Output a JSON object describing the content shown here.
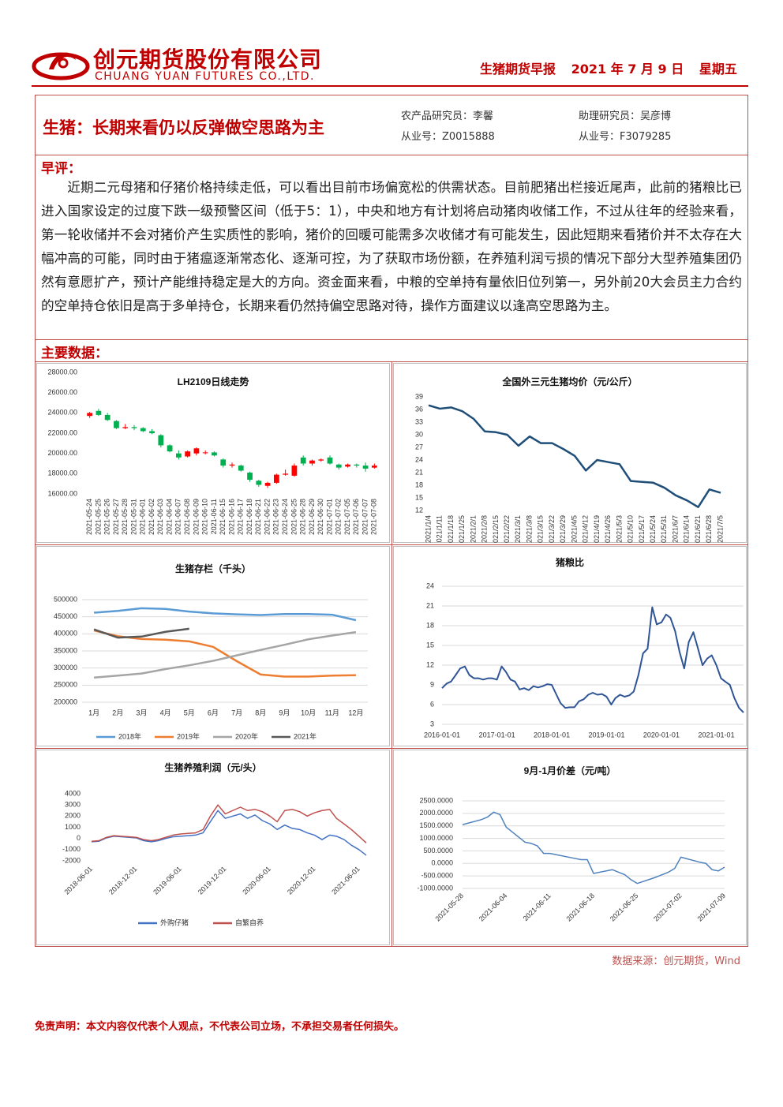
{
  "header": {
    "company_cn": "创元期货股份有限公司",
    "company_en": "CHUANG YUAN FUTURES CO.,LTD.",
    "report": "生猪期货早报",
    "date": "2021 年 7 月 9 日",
    "weekday": "星期五"
  },
  "title": "生猪：长期来看仍以反弹做空思路为主",
  "researchers": [
    "农产品研究员：李馨",
    "从业号：Z0015888",
    "助理研究员：吴彦博",
    "从业号：F3079285"
  ],
  "comment": {
    "heading": "早评：",
    "text": "近期二元母猪和仔猪价格持续走低，可以看出目前市场偏宽松的供需状态。目前肥猪出栏接近尾声，此前的猪粮比已进入国家设定的过度下跌一级预警区间（低于5：1），中央和地方有计划将启动猪肉收储工作，不过从往年的经验来看，第一轮收储并不会对猪价产生实质性的影响，猪价的回暖可能需多次收储才有可能发生，因此短期来看猪价并不太存在大幅冲高的可能，同时由于猪瘟逐渐常态化、逐渐可控，为了获取市场份额，在养殖利润亏损的情况下部分大型养殖集团仍然有意愿扩产，预计产能维持稳定是大的方向。资金面来看，中粮的空单持有量依旧位列第一，另外前20大会员主力合约的空单持仓依旧是高于多单持仓，长期来看仍然持偏空思路对待，操作方面建议以逢高空思路为主。"
  },
  "data_heading": "主要数据：",
  "chart_data": [
    {
      "type": "candlestick",
      "title": "LH2109日线走势",
      "categories": [
        "2021-05-24",
        "2021-05-25",
        "2021-05-26",
        "2021-05-27",
        "2021-05-28",
        "2021-05-31",
        "2021-06-01",
        "2021-06-02",
        "2021-06-03",
        "2021-06-04",
        "2021-06-07",
        "2021-06-08",
        "2021-06-09",
        "2021-06-10",
        "2021-06-11",
        "2021-06-15",
        "2021-06-16",
        "2021-06-17",
        "2021-06-18",
        "2021-06-21",
        "2021-06-22",
        "2021-06-23",
        "2021-06-24",
        "2021-06-25",
        "2021-06-28",
        "2021-06-29",
        "2021-06-30",
        "2021-07-01",
        "2021-07-02",
        "2021-07-05",
        "2021-07-06",
        "2021-07-07",
        "2021-07-08"
      ],
      "open": [
        23700,
        24200,
        23800,
        23200,
        22500,
        22600,
        22500,
        22200,
        21800,
        20800,
        20000,
        19700,
        20000,
        20100,
        20100,
        19400,
        18800,
        18800,
        18100,
        17300,
        16800,
        17100,
        17900,
        17800,
        19600,
        19000,
        19300,
        19600,
        18900,
        18700,
        18900,
        18800,
        18600
      ],
      "high": [
        24100,
        24400,
        24000,
        23300,
        22900,
        22800,
        22600,
        22400,
        21900,
        20900,
        20300,
        20300,
        20600,
        20300,
        20200,
        19500,
        19100,
        18900,
        18200,
        17400,
        17200,
        18000,
        18400,
        19000,
        19800,
        19400,
        19500,
        19800,
        19000,
        19000,
        19000,
        19100,
        19000
      ],
      "low": [
        23500,
        23700,
        23200,
        22400,
        22400,
        22300,
        22100,
        21900,
        20600,
        20100,
        19400,
        19600,
        19800,
        19900,
        19700,
        18600,
        18600,
        18200,
        17200,
        16700,
        16600,
        17000,
        17800,
        17700,
        18800,
        18800,
        19200,
        18900,
        18400,
        18600,
        18600,
        18200,
        18500
      ],
      "close": [
        24000,
        23800,
        23300,
        22500,
        22600,
        22500,
        22200,
        22000,
        20800,
        20200,
        19600,
        20200,
        20500,
        20100,
        19800,
        18800,
        18900,
        18300,
        17400,
        16900,
        17100,
        17900,
        18000,
        18800,
        19000,
        19300,
        19400,
        19000,
        18600,
        18900,
        18800,
        18500,
        18800
      ],
      "up_color": "#ff0000",
      "down_color": "#00b050",
      "ylim": [
        16000,
        28000
      ],
      "yticks": [
        {
          "value": 16000,
          "label": "16000.00"
        },
        {
          "value": 18000,
          "label": "18000.00"
        },
        {
          "value": 20000,
          "label": "20000.00"
        },
        {
          "value": 22000,
          "label": "22000.00"
        },
        {
          "value": 24000,
          "label": "24000.00"
        },
        {
          "value": 26000,
          "label": "26000.00"
        },
        {
          "value": 28000,
          "label": "28000.00"
        }
      ],
      "grid": false
    },
    {
      "type": "line",
      "title": "全国外三元生猪均价（元/公斤）",
      "categories": [
        "2021/1/4",
        "2021/1/11",
        "2021/1/18",
        "2021/1/25",
        "2021/2/1",
        "2021/2/8",
        "2021/2/15",
        "2021/2/22",
        "2021/3/1",
        "2021/3/8",
        "2021/3/15",
        "2021/3/22",
        "2021/3/29",
        "2021/4/5",
        "2021/4/12",
        "2021/4/19",
        "2021/4/26",
        "2021/5/3",
        "2021/5/10",
        "2021/5/17",
        "2021/5/24",
        "2021/5/31",
        "2021/6/7",
        "2021/6/14",
        "2021/6/21",
        "2021/6/28",
        "2021/7/5"
      ],
      "values": [
        37,
        36.2,
        36.5,
        35.6,
        33.8,
        30.8,
        30.6,
        30,
        27.4,
        29.6,
        28,
        28,
        26.6,
        25,
        21.5,
        24,
        23.5,
        23,
        19,
        18.8,
        18.6,
        17.4,
        15.6,
        14.4,
        12.8,
        17,
        16.2
      ],
      "color": "#1f4e79",
      "ylim": [
        12,
        39
      ],
      "yticks": [
        12,
        15,
        18,
        21,
        24,
        27,
        30,
        33,
        36,
        39
      ],
      "grid": false
    },
    {
      "type": "line",
      "title": "生猪存栏（千头）",
      "categories": [
        "1月",
        "2月",
        "3月",
        "4月",
        "5月",
        "6月",
        "7月",
        "8月",
        "9月",
        "10月",
        "11月",
        "12月"
      ],
      "series": [
        {
          "name": "2018年",
          "color": "#5b9bd5",
          "values": [
            462000,
            467000,
            475000,
            473000,
            465000,
            460000,
            457000,
            455000,
            458000,
            458000,
            456000,
            440000
          ]
        },
        {
          "name": "2019年",
          "color": "#ed7d31",
          "values": [
            410000,
            393000,
            385000,
            383000,
            378000,
            362000,
            320000,
            281000,
            275000,
            275000,
            278000,
            279000
          ]
        },
        {
          "name": "2020年",
          "color": "#a5a5a5",
          "values": [
            272000,
            278000,
            284000,
            297000,
            308000,
            321000,
            337000,
            353000,
            368000,
            384000,
            395000,
            405000
          ]
        },
        {
          "name": "2021年",
          "color": "#595959",
          "values": [
            413000,
            389000,
            392000,
            406000,
            415000,
            null,
            null,
            null,
            null,
            null,
            null,
            null
          ]
        }
      ],
      "ylim": [
        200000,
        500000
      ],
      "yticks": [
        200000,
        250000,
        300000,
        350000,
        400000,
        450000,
        500000
      ],
      "grid": true
    },
    {
      "type": "line",
      "title": "猪粮比",
      "x": [
        "2016-01-01",
        "2016-02-01",
        "2016-03-01",
        "2016-04-01",
        "2016-05-01",
        "2016-06-01",
        "2016-07-01",
        "2016-08-01",
        "2016-09-01",
        "2016-10-01",
        "2016-11-01",
        "2016-12-01",
        "2017-01-01",
        "2017-02-01",
        "2017-03-01",
        "2017-04-01",
        "2017-05-01",
        "2017-06-01",
        "2017-07-01",
        "2017-08-01",
        "2017-09-01",
        "2017-10-01",
        "2017-11-01",
        "2017-12-01",
        "2018-01-01",
        "2018-02-01",
        "2018-03-01",
        "2018-04-01",
        "2018-05-01",
        "2018-06-01",
        "2018-07-01",
        "2018-08-01",
        "2018-09-01",
        "2018-10-01",
        "2018-11-01",
        "2018-12-01",
        "2019-01-01",
        "2019-02-01",
        "2019-03-01",
        "2019-04-01",
        "2019-05-01",
        "2019-06-01",
        "2019-07-01",
        "2019-08-01",
        "2019-09-01",
        "2019-10-01",
        "2019-11-01",
        "2019-12-01",
        "2020-01-01",
        "2020-02-01",
        "2020-03-01",
        "2020-04-01",
        "2020-05-01",
        "2020-06-01",
        "2020-07-01",
        "2020-08-01",
        "2020-09-01",
        "2020-10-01",
        "2020-11-01",
        "2020-12-01",
        "2021-01-01",
        "2021-02-01",
        "2021-03-01",
        "2021-04-01",
        "2021-05-01",
        "2021-06-01",
        "2021-07-01"
      ],
      "values": [
        8.5,
        9.2,
        9.5,
        10.5,
        11.5,
        11.8,
        10.5,
        10,
        10,
        9.8,
        10,
        10,
        9.8,
        11.8,
        11,
        9.8,
        9.5,
        8.3,
        8.5,
        8.2,
        8.8,
        8.6,
        8.8,
        9.1,
        9,
        7.5,
        6.2,
        5.5,
        5.6,
        5.6,
        6.5,
        6.8,
        7.5,
        7.8,
        7.5,
        7.6,
        7.2,
        6,
        7,
        7.5,
        7.2,
        7.4,
        8,
        10.5,
        13.8,
        14.5,
        20.8,
        18.2,
        18.5,
        19.7,
        19.2,
        17.2,
        14,
        11.5,
        15.5,
        17,
        14.5,
        12,
        13,
        13.5,
        12,
        10,
        9.5,
        9,
        7,
        5.5,
        4.8
      ],
      "color": "#2f5597",
      "xlim": [
        "2016-01-01",
        "2021-07-01"
      ],
      "xticks": [
        "2016-01-01",
        "2017-01-01",
        "2018-01-01",
        "2019-01-01",
        "2020-01-01",
        "2021-01-01"
      ],
      "ylim": [
        3,
        24
      ],
      "yticks": [
        3,
        6,
        9,
        12,
        15,
        18,
        21,
        24
      ],
      "grid": true
    },
    {
      "type": "line",
      "title": "生猪养殖利润（元/头）",
      "x": [
        "2018-06-01",
        "2018-07-01",
        "2018-08-01",
        "2018-09-01",
        "2018-10-01",
        "2018-11-01",
        "2018-12-01",
        "2019-01-01",
        "2019-02-01",
        "2019-03-01",
        "2019-04-01",
        "2019-05-01",
        "2019-06-01",
        "2019-07-01",
        "2019-08-01",
        "2019-09-01",
        "2019-10-01",
        "2019-11-01",
        "2019-12-01",
        "2020-01-01",
        "2020-02-01",
        "2020-03-01",
        "2020-04-01",
        "2020-05-01",
        "2020-06-01",
        "2020-07-01",
        "2020-08-01",
        "2020-09-01",
        "2020-10-01",
        "2020-11-01",
        "2020-12-01",
        "2021-01-01",
        "2021-02-01",
        "2021-03-01",
        "2021-04-01",
        "2021-05-01",
        "2021-06-01",
        "2021-07-01"
      ],
      "series": [
        {
          "name": "外购仔猪",
          "color": "#4472c4",
          "values": [
            -300,
            -250,
            50,
            200,
            150,
            100,
            50,
            -200,
            -300,
            -200,
            0,
            150,
            200,
            250,
            300,
            500,
            1500,
            2500,
            1800,
            2000,
            2200,
            1800,
            2100,
            1600,
            1300,
            800,
            1200,
            900,
            800,
            500,
            300,
            -100,
            300,
            200,
            -100,
            -600,
            -1000,
            -1500
          ]
        },
        {
          "name": "自繁自养",
          "color": "#c0504d",
          "values": [
            -250,
            -200,
            100,
            250,
            200,
            150,
            100,
            -100,
            -200,
            -100,
            100,
            300,
            400,
            450,
            500,
            800,
            2000,
            3000,
            2200,
            2500,
            2800,
            2500,
            2600,
            2400,
            2000,
            1500,
            2500,
            2600,
            2400,
            2000,
            2300,
            2500,
            2600,
            1800,
            1300,
            800,
            200,
            -400
          ]
        }
      ],
      "xlim": [
        "2018-06-01",
        "2021-07-01"
      ],
      "xticks": [
        "2018-06-01",
        "2018-12-01",
        "2019-06-01",
        "2019-12-01",
        "2020-06-01",
        "2020-12-01",
        "2021-06-01"
      ],
      "ylim": [
        -2000,
        4000
      ],
      "yticks": [
        -2000,
        -1000,
        0,
        1000,
        2000,
        3000,
        4000
      ],
      "grid": false
    },
    {
      "type": "line",
      "title": "9月-1月价差（元/吨）",
      "x": [
        "2021-05-28",
        "2021-05-31",
        "2021-06-01",
        "2021-06-02",
        "2021-06-03",
        "2021-06-04",
        "2021-06-07",
        "2021-06-08",
        "2021-06-09",
        "2021-06-10",
        "2021-06-11",
        "2021-06-15",
        "2021-06-16",
        "2021-06-17",
        "2021-06-18",
        "2021-06-21",
        "2021-06-22",
        "2021-06-23",
        "2021-06-24",
        "2021-06-25",
        "2021-06-28",
        "2021-06-29",
        "2021-06-30",
        "2021-07-01",
        "2021-07-02",
        "2021-07-05",
        "2021-07-06",
        "2021-07-07",
        "2021-07-08",
        "2021-07-09"
      ],
      "values": [
        1550,
        1750,
        1850,
        2050,
        1950,
        1450,
        850,
        800,
        700,
        400,
        400,
        200,
        150,
        150,
        -400,
        -250,
        -350,
        -450,
        -650,
        -800,
        -550,
        -450,
        -350,
        -200,
        250,
        50,
        0,
        -250,
        -300,
        -150
      ],
      "color": "#4f81bd",
      "xlim": [
        "2021-05-28",
        "2021-07-09"
      ],
      "xticks": [
        "2021-05-28",
        "2021-06-04",
        "2021-06-11",
        "2021-06-18",
        "2021-06-25",
        "2021-07-02",
        "2021-07-09"
      ],
      "ylim": [
        -1000,
        2500
      ],
      "yticks": [
        {
          "value": -1000,
          "label": "-1000.0000"
        },
        {
          "value": -500,
          "label": "-500.0000"
        },
        {
          "value": 0,
          "label": "0.0000"
        },
        {
          "value": 500,
          "label": "500.0000"
        },
        {
          "value": 1000,
          "label": "1000.0000"
        },
        {
          "value": 1500,
          "label": "1500.0000"
        },
        {
          "value": 2000,
          "label": "2000.0000"
        },
        {
          "value": 2500,
          "label": "2500.0000"
        }
      ],
      "grid": true
    }
  ],
  "source": "数据来源：创元期货，Wind",
  "disclaimer": "免责声明：本文内容仅代表个人观点，不代表公司立场，不承担交易者任何损失。"
}
